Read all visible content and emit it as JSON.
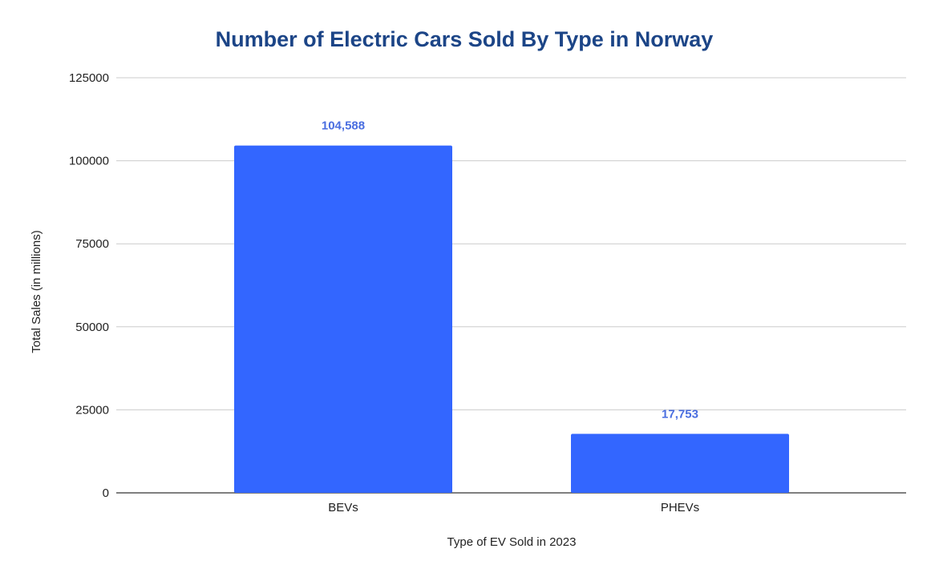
{
  "chart_data": {
    "type": "bar",
    "title": "Number of Electric Cars Sold By Type in Norway",
    "xlabel": "Type of EV Sold in 2023",
    "ylabel": "Total Sales (in millions)",
    "categories": [
      "BEVs",
      "PHEVs"
    ],
    "values": [
      104588,
      17753
    ],
    "data_labels": [
      "104,588",
      "17,753"
    ],
    "ylim": [
      0,
      125000
    ],
    "yticks": [
      "0",
      "25000",
      "50000",
      "75000",
      "100000",
      "125000"
    ],
    "grid": true,
    "legend": "none",
    "colors": {
      "bar": "#3366ff",
      "data_label": "#4a6ee0",
      "title": "#1c4587",
      "grid": "#cccccc"
    }
  }
}
